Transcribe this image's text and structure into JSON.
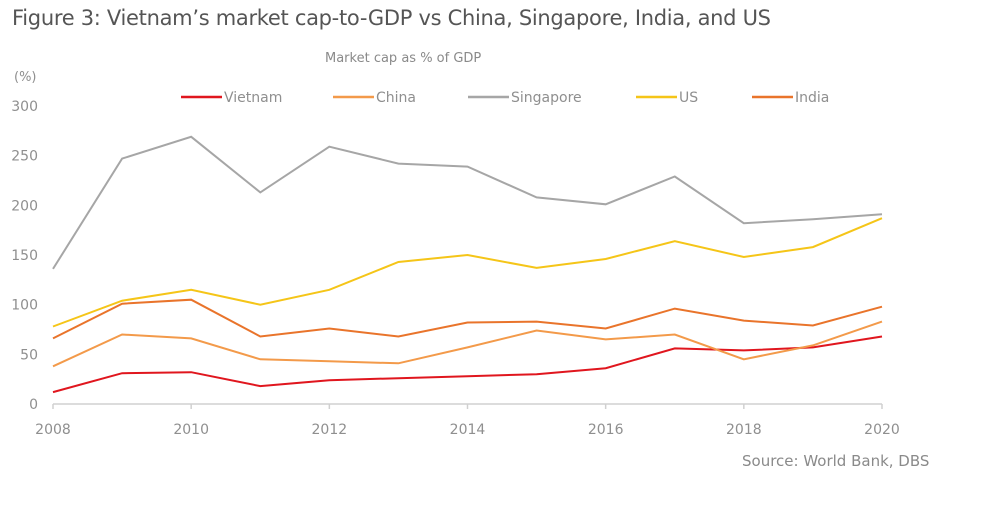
{
  "figure": {
    "title": "Figure 3: Vietnam’s market cap-to-GDP vs China, Singapore, India, and US",
    "source": "Source: World Bank, DBS"
  },
  "chart_data": {
    "type": "line",
    "title": "Market cap as % of GDP",
    "xlabel": "",
    "ylabel": "(%)",
    "x": [
      2008,
      2009,
      2010,
      2011,
      2012,
      2013,
      2014,
      2015,
      2016,
      2017,
      2018,
      2019,
      2020
    ],
    "xticks": [
      "2008",
      "2010",
      "2012",
      "2014",
      "2016",
      "2018",
      "2020"
    ],
    "yticks": [
      "0",
      "50",
      "100",
      "150",
      "200",
      "250",
      "300"
    ],
    "ylim": [
      0,
      300
    ],
    "grid": false,
    "legend_position": "top",
    "series": [
      {
        "name": "Vietnam",
        "color": "#e0161e",
        "values": [
          12,
          31,
          32,
          18,
          24,
          26,
          28,
          30,
          36,
          56,
          54,
          57,
          68
        ]
      },
      {
        "name": "China",
        "color": "#f39a4a",
        "values": [
          38,
          70,
          66,
          45,
          43,
          41,
          57,
          74,
          65,
          70,
          45,
          59,
          83
        ]
      },
      {
        "name": "Singapore",
        "color": "#a6a6a6",
        "values": [
          136,
          247,
          269,
          213,
          259,
          242,
          239,
          208,
          201,
          229,
          182,
          186,
          191
        ]
      },
      {
        "name": "US",
        "color": "#f5c518",
        "values": [
          78,
          104,
          115,
          100,
          115,
          143,
          150,
          137,
          146,
          164,
          148,
          158,
          187
        ]
      },
      {
        "name": "India",
        "color": "#e9742b",
        "values": [
          66,
          101,
          105,
          68,
          76,
          68,
          82,
          83,
          76,
          96,
          84,
          79,
          98
        ]
      }
    ]
  }
}
